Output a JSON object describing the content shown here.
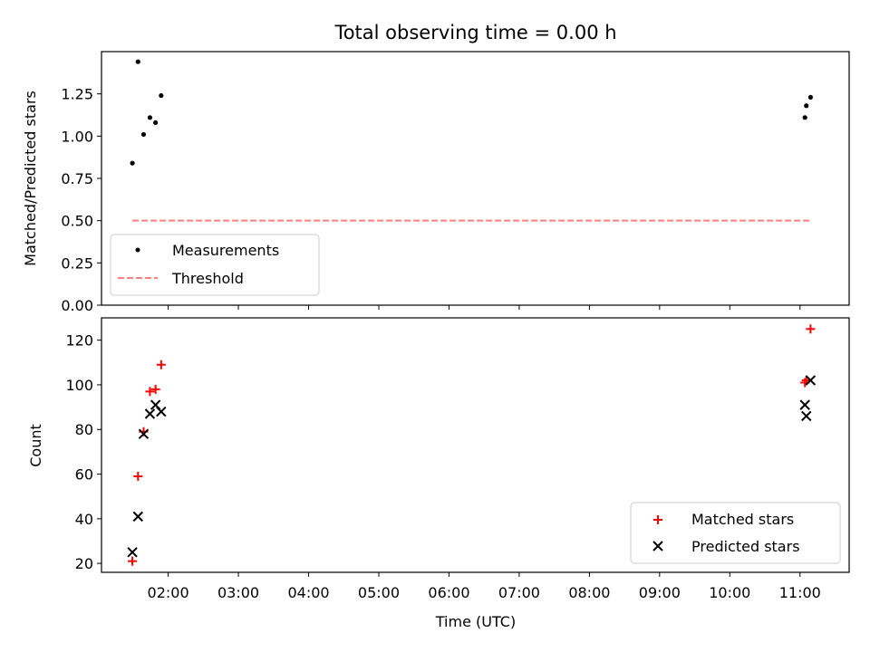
{
  "chart_data": [
    {
      "type": "scatter",
      "title": "Total observing time = 0.00 h",
      "xlabel": "",
      "ylabel": "Matched/Predicted stars",
      "xlim_hours": [
        1.05,
        11.7
      ],
      "ylim": [
        0,
        1.5
      ],
      "yticks": [
        "0.00",
        "0.25",
        "0.50",
        "0.75",
        "1.00",
        "1.25"
      ],
      "ytick_values": [
        0,
        0.25,
        0.5,
        0.75,
        1.0,
        1.25
      ],
      "legend_position": "lower-left",
      "series": [
        {
          "name": "Measurements",
          "marker": "dot",
          "color": "#000000",
          "points": [
            {
              "x": 1.49,
              "y": 0.84
            },
            {
              "x": 1.57,
              "y": 1.44
            },
            {
              "x": 1.65,
              "y": 1.01
            },
            {
              "x": 1.74,
              "y": 1.11
            },
            {
              "x": 1.82,
              "y": 1.08
            },
            {
              "x": 1.9,
              "y": 1.24
            },
            {
              "x": 11.07,
              "y": 1.11
            },
            {
              "x": 11.09,
              "y": 1.18
            },
            {
              "x": 11.15,
              "y": 1.23
            }
          ]
        },
        {
          "name": "Threshold",
          "marker": "dashed-line",
          "color": "#ff7f7f",
          "points": [
            {
              "x": 1.49,
              "y": 0.5
            },
            {
              "x": 11.15,
              "y": 0.5
            }
          ]
        }
      ]
    },
    {
      "type": "scatter",
      "title": "",
      "xlabel": "Time (UTC)",
      "ylabel": "Count",
      "xlim_hours": [
        1.05,
        11.7
      ],
      "ylim": [
        16,
        130
      ],
      "yticks": [
        "20",
        "40",
        "60",
        "80",
        "100",
        "120"
      ],
      "ytick_values": [
        20,
        40,
        60,
        80,
        100,
        120
      ],
      "xticks": [
        "02:00",
        "03:00",
        "04:00",
        "05:00",
        "06:00",
        "07:00",
        "08:00",
        "09:00",
        "10:00",
        "11:00"
      ],
      "xtick_hours": [
        2,
        3,
        4,
        5,
        6,
        7,
        8,
        9,
        10,
        11
      ],
      "legend_position": "lower-right",
      "series": [
        {
          "name": "Matched stars",
          "marker": "plus",
          "color": "#ff0000",
          "points": [
            {
              "x": 1.49,
              "y": 21
            },
            {
              "x": 1.57,
              "y": 59
            },
            {
              "x": 1.65,
              "y": 79
            },
            {
              "x": 1.74,
              "y": 97
            },
            {
              "x": 1.82,
              "y": 98
            },
            {
              "x": 1.9,
              "y": 109
            },
            {
              "x": 11.07,
              "y": 101
            },
            {
              "x": 11.09,
              "y": 102
            },
            {
              "x": 11.15,
              "y": 125
            }
          ]
        },
        {
          "name": "Predicted stars",
          "marker": "x",
          "color": "#000000",
          "points": [
            {
              "x": 1.49,
              "y": 25
            },
            {
              "x": 1.57,
              "y": 41
            },
            {
              "x": 1.65,
              "y": 78
            },
            {
              "x": 1.74,
              "y": 87
            },
            {
              "x": 1.82,
              "y": 91
            },
            {
              "x": 1.9,
              "y": 88
            },
            {
              "x": 11.07,
              "y": 91
            },
            {
              "x": 11.09,
              "y": 86
            },
            {
              "x": 11.15,
              "y": 102
            }
          ]
        }
      ]
    }
  ]
}
